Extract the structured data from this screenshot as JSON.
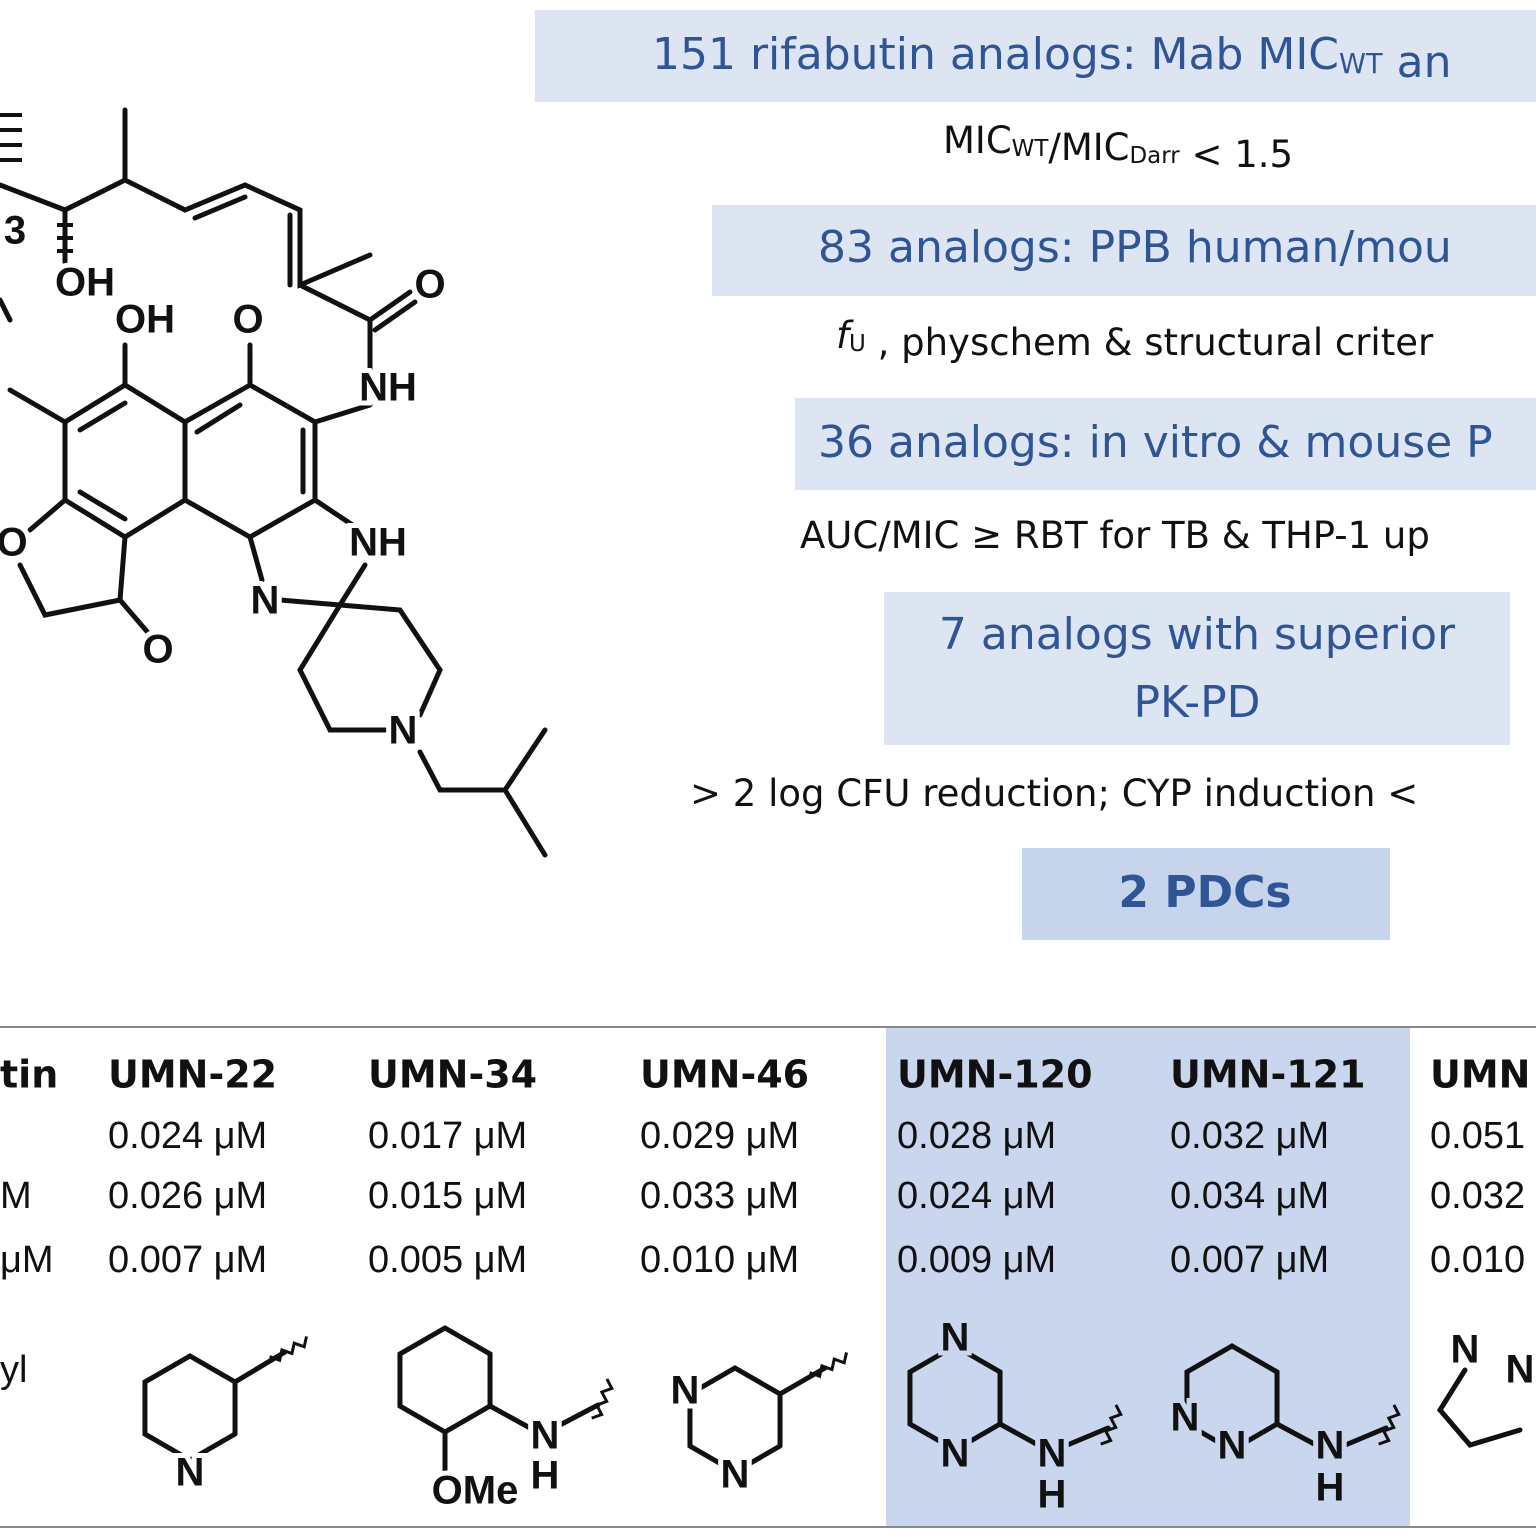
{
  "molecule": {
    "labels": [
      "3",
      "OH",
      "OH",
      "O",
      "O",
      "NH",
      "NH",
      "N",
      "O",
      "O",
      "N"
    ]
  },
  "funnel": {
    "stages": [
      {
        "lines": [
          [
            "151 rifabutin analogs: Mab MIC",
            {
              "sub": "WT"
            },
            " an"
          ]
        ]
      },
      {
        "lines": [
          [
            "83 analogs: PPB human/mou"
          ]
        ]
      },
      {
        "lines": [
          [
            "36 analogs: in vitro & mouse P"
          ]
        ]
      },
      {
        "lines": [
          [
            "7 analogs with superior"
          ],
          [
            "PK-PD"
          ]
        ]
      },
      {
        "lines": [
          [
            "2 PDCs"
          ]
        ]
      }
    ],
    "criteria": [
      [
        "MIC",
        {
          "sub": "WT"
        },
        "/MIC",
        {
          "sub": "Darr"
        },
        " < 1.5"
      ],
      [
        {
          "italic": "f"
        },
        {
          "sub": "U"
        },
        " , physchem & structural criter"
      ],
      [
        "AUC/MIC ≥ RBT for TB & THP-1 up"
      ],
      [
        "> 2 log CFU reduction; CYP induction <"
      ]
    ]
  },
  "table": {
    "columns": [
      {
        "header": "tin",
        "values": [
          null,
          "M",
          "μM"
        ],
        "label": "yl"
      },
      {
        "header": "UMN-22",
        "values": [
          "0.024 μM",
          "0.026 μM",
          "0.007 μM"
        ],
        "atoms": [
          "N"
        ]
      },
      {
        "header": "UMN-34",
        "values": [
          "0.017 μM",
          "0.015 μM",
          "0.005 μM"
        ],
        "atoms": [
          "N",
          "H",
          "OMe"
        ]
      },
      {
        "header": "UMN-46",
        "values": [
          "0.029 μM",
          "0.033 μM",
          "0.010 μM"
        ],
        "atoms": [
          "N",
          "N"
        ]
      },
      {
        "header": "UMN-120",
        "values": [
          "0.028 μM",
          "0.024 μM",
          "0.009 μM"
        ],
        "atoms": [
          "N",
          "N",
          "N",
          "H"
        ]
      },
      {
        "header": "UMN-121",
        "values": [
          "0.032 μM",
          "0.034 μM",
          "0.007 μM"
        ],
        "atoms": [
          "N",
          "N",
          "N",
          "H"
        ]
      },
      {
        "header": "UMN",
        "values": [
          "0.051",
          "0.032",
          "0.010"
        ],
        "atoms": [
          "N",
          "N"
        ]
      }
    ]
  }
}
